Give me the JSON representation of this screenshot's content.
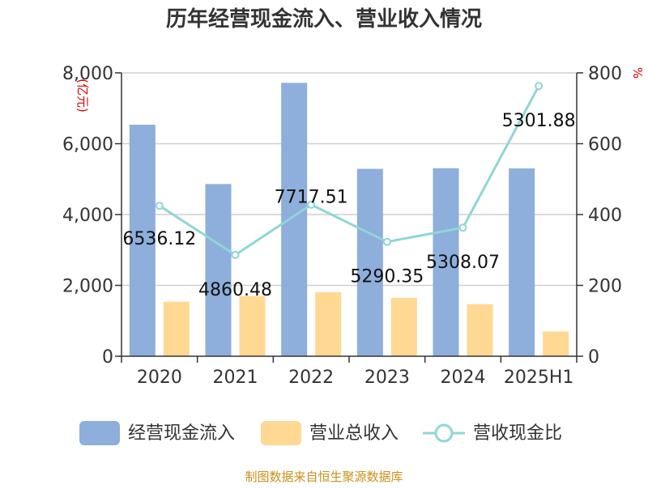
{
  "chart_data": {
    "type": "bar",
    "title": "历年经营现金流入、营业收入情况",
    "categories": [
      "2020",
      "2021",
      "2022",
      "2023",
      "2024",
      "2025H1"
    ],
    "series": [
      {
        "name": "经营现金流入",
        "kind": "bar",
        "axis": "left",
        "color": "#8eaedb",
        "values": [
          6536.12,
          4860.48,
          7717.51,
          5290.35,
          5308.07,
          5301.88
        ]
      },
      {
        "name": "营业总收入",
        "kind": "bar",
        "axis": "left",
        "color": "#ffd894",
        "values": [
          1540,
          1700,
          1810,
          1650,
          1470,
          700
        ]
      },
      {
        "name": "营收现金比",
        "kind": "line",
        "axis": "right",
        "color": "#8fd6d6",
        "values": [
          425,
          286,
          428,
          323,
          363,
          763
        ]
      }
    ],
    "data_labels": [
      "6536.12",
      "4860.48",
      "7717.51",
      "5290.35",
      "5308.07",
      "5301.88"
    ],
    "y_left": {
      "label": "(亿元)",
      "min": 0,
      "max": 8000,
      "ticks": [
        "0",
        "2,000",
        "4,000",
        "6,000",
        "8,000"
      ],
      "tick_values": [
        0,
        2000,
        4000,
        6000,
        8000
      ]
    },
    "y_right": {
      "label": "%",
      "min": 0,
      "max": 800,
      "ticks": [
        "0",
        "200",
        "400",
        "600",
        "800"
      ],
      "tick_values": [
        0,
        200,
        400,
        600,
        800
      ]
    },
    "grid": true,
    "legend_position": "bottom"
  },
  "footer": {
    "source": "制图数据来自恒生聚源数据库"
  }
}
